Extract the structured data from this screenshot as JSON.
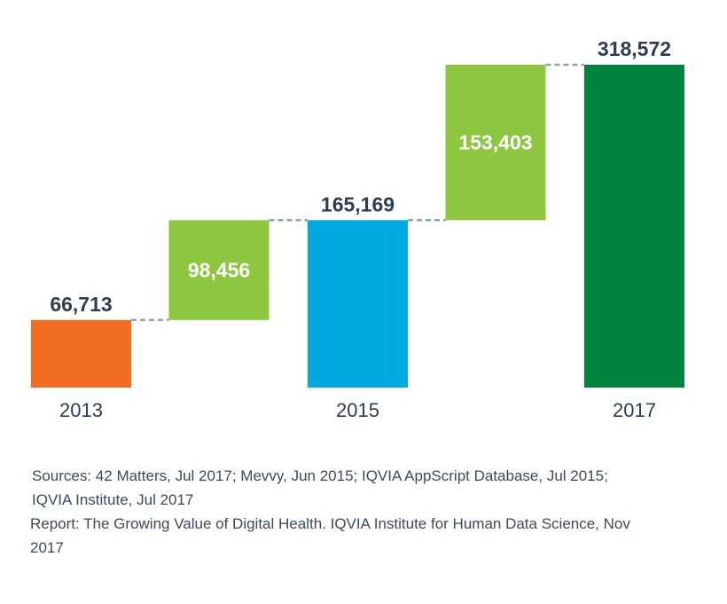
{
  "chart_data": {
    "type": "bar",
    "subtype": "waterfall",
    "title": "",
    "xlabel": "",
    "ylabel": "",
    "ylim": [
      0,
      318572
    ],
    "grid": false,
    "bars": [
      {
        "label": "2013",
        "kind": "total",
        "start": 0,
        "value": 66713,
        "display": "66,713",
        "color": "#f26c21"
      },
      {
        "label": "",
        "kind": "increase",
        "start": 66713,
        "value": 98456,
        "display": "98,456",
        "color": "#8dc63f"
      },
      {
        "label": "2015",
        "kind": "total",
        "start": 0,
        "value": 165169,
        "display": "165,169",
        "color": "#00a9e0"
      },
      {
        "label": "",
        "kind": "increase",
        "start": 165169,
        "value": 153403,
        "display": "153,403",
        "color": "#8dc63f"
      },
      {
        "label": "2017",
        "kind": "total",
        "start": 0,
        "value": 318572,
        "display": "318,572",
        "color": "#00843d"
      }
    ],
    "connector_color": "#8fa3b5",
    "label_color": "#2d3e50"
  },
  "notes": {
    "sources": "Sources: 42 Matters, Jul 2017; Mevvy, Jun 2015; IQVIA AppScript Database, Jul 2015; IQVIA Institute, Jul 2017",
    "report": "Report: The Growing Value of Digital Health. IQVIA Institute for Human Data Science, Nov 2017"
  }
}
